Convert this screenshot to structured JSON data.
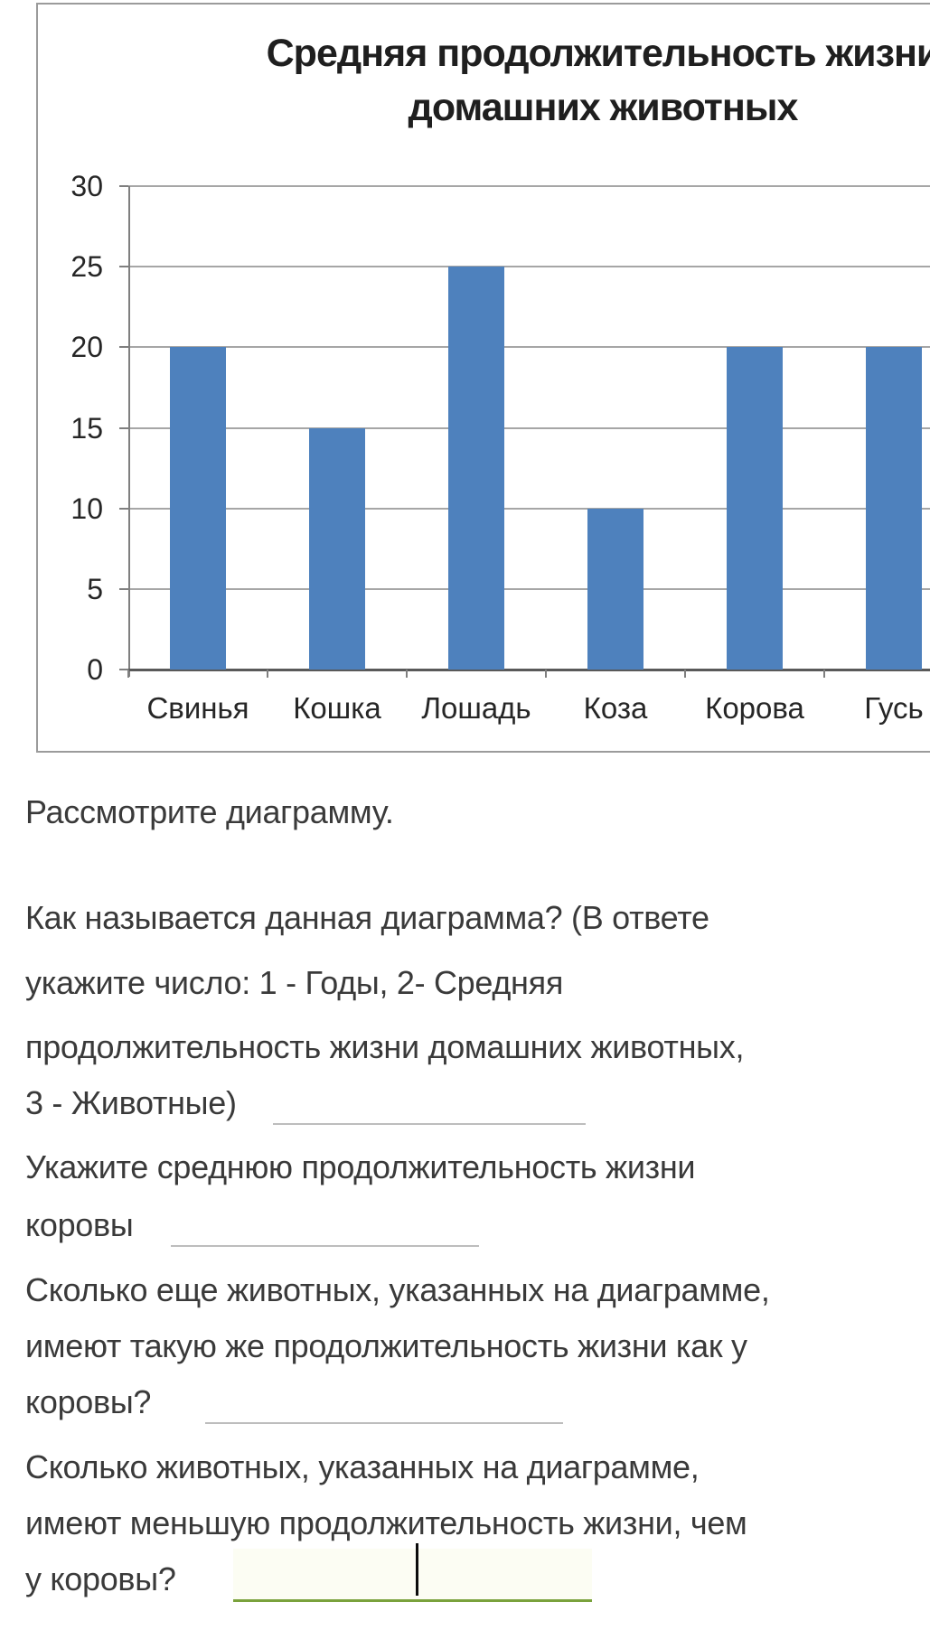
{
  "chart_data": {
    "type": "bar",
    "title_lines": [
      "Средняя продолжительность жизни",
      "домашних животных"
    ],
    "categories": [
      "Свинья",
      "Кошка",
      "Лошадь",
      "Коза",
      "Корова",
      "Гусь"
    ],
    "values": [
      20,
      15,
      25,
      10,
      20,
      20
    ],
    "ylim": [
      0,
      30
    ],
    "yticks": [
      0,
      5,
      10,
      15,
      20,
      25,
      30
    ],
    "xlabel": "",
    "ylabel": "",
    "grid": true,
    "legend": false,
    "bar_color": "#4e81bd",
    "grid_color": "#a6a6a6",
    "axis_color": "#595959"
  },
  "questions": {
    "intro": "Рассмотрите диаграмму.",
    "q1_lines": [
      "Как называется данная диаграмма? (В ответе",
      "укажите число: 1 - Годы, 2- Средняя",
      "продолжительность жизни домашних животных,",
      "3 - Животные)"
    ],
    "q1_answer": "",
    "q2_lines": [
      "Укажите среднюю продолжительность жизни",
      "коровы"
    ],
    "q2_answer": "",
    "q3_lines": [
      "Сколько еще животных, указанных на диаграмме,",
      "имеют такую же продолжительность жизни как у",
      "коровы?"
    ],
    "q3_answer": "",
    "q4_lines": [
      "Сколько животных, указанных на диаграмме,",
      "имеют меньшую продолжительность жизни, чем",
      "у коровы?"
    ],
    "q4_answer": ""
  },
  "colors": {
    "text": "#3a3a3a",
    "answer_underline": "#bdbdbd",
    "focused_underline": "#7aa23c",
    "bar": "#4e81bd"
  }
}
